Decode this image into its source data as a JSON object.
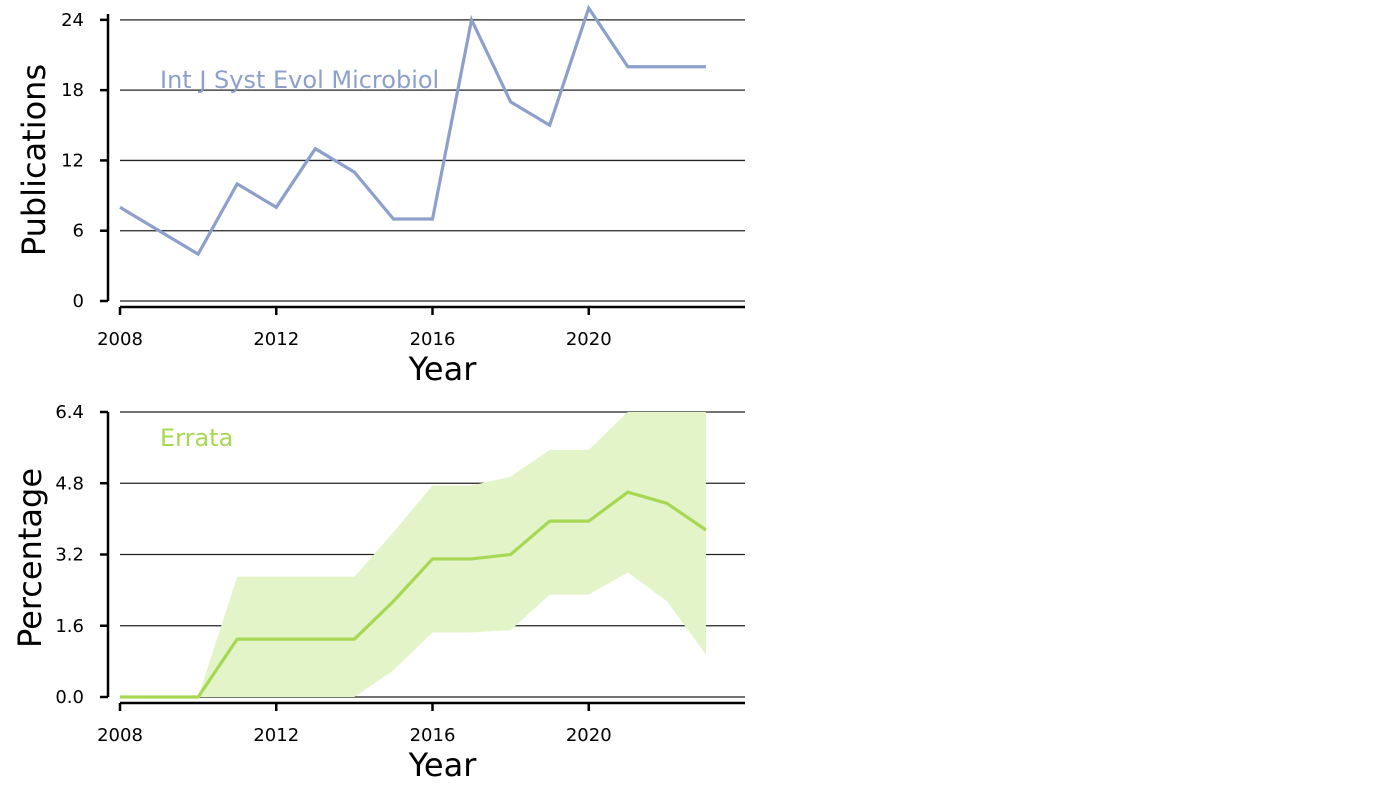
{
  "chart_data": [
    {
      "type": "line",
      "xlabel": "Year",
      "ylabel": "Publications",
      "xlim": [
        2008,
        2024
      ],
      "ylim": [
        0,
        24.5
      ],
      "xticks": [
        2008,
        2012,
        2016,
        2020
      ],
      "yticks": [
        0,
        6,
        12,
        18,
        24
      ],
      "ytick_labels": [
        "0",
        "6",
        "12",
        "18",
        "24"
      ],
      "grid": "horizontal",
      "series": [
        {
          "name": "Int J Syst Evol Microbiol",
          "color": "#8da0cb",
          "x": [
            2008,
            2009,
            2010,
            2011,
            2012,
            2013,
            2014,
            2015,
            2016,
            2017,
            2018,
            2019,
            2020,
            2021,
            2022,
            2023
          ],
          "values": [
            8,
            6,
            4,
            10,
            8,
            13,
            11,
            7,
            7,
            24,
            17,
            15,
            25,
            20,
            20,
            20
          ]
        }
      ]
    },
    {
      "type": "area",
      "xlabel": "Year",
      "ylabel": "Percentage",
      "xlim": [
        2008,
        2024
      ],
      "ylim": [
        0,
        6.4
      ],
      "xticks": [
        2008,
        2012,
        2016,
        2020
      ],
      "yticks": [
        0,
        1.6,
        3.2,
        4.8,
        6.4
      ],
      "ytick_labels": [
        "0.0",
        "1.6",
        "3.2",
        "4.8",
        "6.4"
      ],
      "grid": "horizontal",
      "series": [
        {
          "name": "Errata",
          "color": "#a6d854",
          "band_color": "#e3f4c8",
          "x": [
            2008,
            2009,
            2010,
            2011,
            2012,
            2013,
            2014,
            2015,
            2016,
            2017,
            2018,
            2019,
            2020,
            2021,
            2022,
            2023
          ],
          "values": [
            0,
            0,
            0,
            1.3,
            1.3,
            1.3,
            1.3,
            2.15,
            3.1,
            3.1,
            3.2,
            3.95,
            3.95,
            4.6,
            4.35,
            3.75
          ],
          "lower": [
            0,
            0,
            0,
            0,
            0,
            0,
            0,
            0.6,
            1.45,
            1.45,
            1.5,
            2.3,
            2.3,
            2.8,
            2.15,
            0.95
          ],
          "upper": [
            0,
            0,
            0,
            2.7,
            2.7,
            2.7,
            2.7,
            3.7,
            4.75,
            4.75,
            4.95,
            5.55,
            5.55,
            6.4,
            6.4,
            6.4
          ]
        }
      ]
    }
  ]
}
